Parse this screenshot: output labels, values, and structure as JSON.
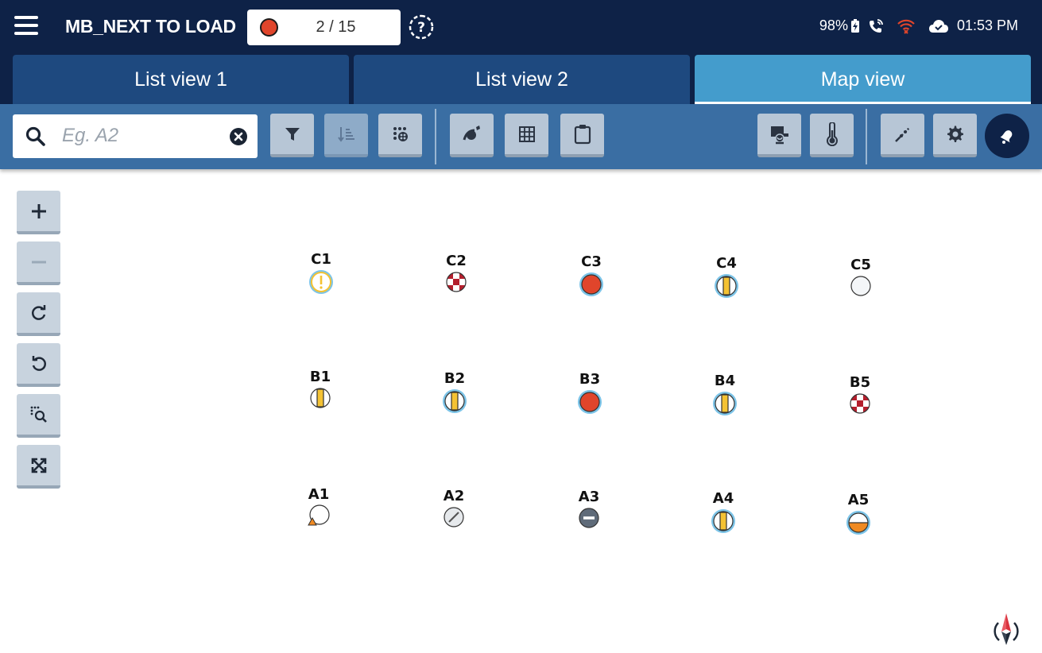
{
  "header": {
    "title": "MB_NEXT TO LOAD",
    "counter": "2 / 15",
    "counter_color": "#e0452b",
    "battery": "98%",
    "time": "01:53 PM"
  },
  "tabs": [
    {
      "label": "List view 1",
      "active": false
    },
    {
      "label": "List view 2",
      "active": false
    },
    {
      "label": "Map view",
      "active": true
    }
  ],
  "search": {
    "placeholder": "Eg. A2"
  },
  "toolbar": {
    "buttons": [
      "filter-icon",
      "sort-icon",
      "dots-icon",
      "hose-icon",
      "grid-icon",
      "clipboard-icon",
      "truck-icon",
      "thermometer-icon",
      "connect-icon",
      "gear-icon",
      "bell-icon"
    ]
  },
  "map": {
    "rows": [
      [
        {
          "label": "C1",
          "state": "warning"
        },
        {
          "label": "C2",
          "state": "checkered"
        },
        {
          "label": "C3",
          "state": "red-selected"
        },
        {
          "label": "C4",
          "state": "yellow-bar-selected"
        },
        {
          "label": "C5",
          "state": "empty"
        }
      ],
      [
        {
          "label": "B1",
          "state": "yellow-bar"
        },
        {
          "label": "B2",
          "state": "yellow-bar-selected"
        },
        {
          "label": "B3",
          "state": "red-selected"
        },
        {
          "label": "B4",
          "state": "yellow-bar-selected"
        },
        {
          "label": "B5",
          "state": "checkered"
        }
      ],
      [
        {
          "label": "A1",
          "state": "triangle"
        },
        {
          "label": "A2",
          "state": "slashed"
        },
        {
          "label": "A3",
          "state": "minus"
        },
        {
          "label": "A4",
          "state": "yellow-bar-selected"
        },
        {
          "label": "A5",
          "state": "half-orange"
        }
      ]
    ]
  },
  "colors": {
    "navy": "#0e2247",
    "tab": "#1e497f",
    "tab_active": "#449ccc",
    "toolbar": "#3a6ea3",
    "red": "#e0452b",
    "yellow": "#f4c233",
    "orange": "#f08a22",
    "selection_ring": "#7cc4e8"
  }
}
